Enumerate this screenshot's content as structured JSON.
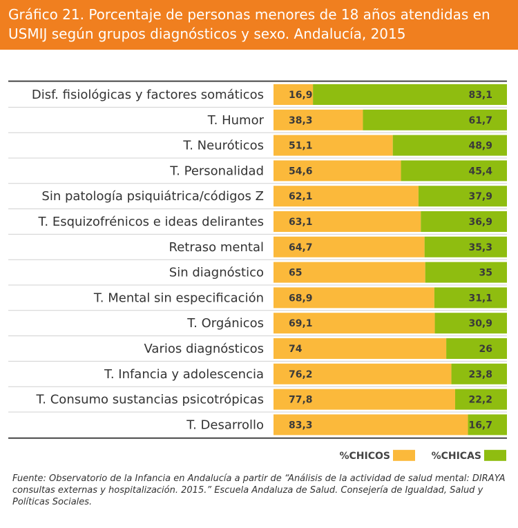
{
  "header": {
    "title": "Gráfico 21. Porcentaje de personas menores de 18 años atendidas en USMIJ según grupos diagnósticos y sexo. Andalucía, 2015"
  },
  "colors": {
    "chicos": "#fbb93b",
    "chicas": "#8fbd10",
    "header": "#f07f1f"
  },
  "chart_data": {
    "type": "bar",
    "stacked": true,
    "orientation": "horizontal",
    "xlim": [
      0,
      100
    ],
    "categories": [
      "Disf. fisiológicas y factores somáticos",
      "T. Humor",
      "T. Neuróticos",
      "T. Personalidad",
      "Sin patología psiquiátrica/códigos Z",
      "T. Esquizofrénicos e ideas delirantes",
      "Retraso mental",
      "Sin diagnóstico",
      "T. Mental sin especificación",
      "T. Orgánicos",
      "Varios diagnósticos",
      "T. Infancia y adolescencia",
      "T. Consumo sustancias psicotrópicas",
      "T. Desarrollo"
    ],
    "series": [
      {
        "name": "%CHICOS",
        "values": [
          16.9,
          38.3,
          51.1,
          54.6,
          62.1,
          63.1,
          64.7,
          65,
          68.9,
          69.1,
          74,
          76.2,
          77.8,
          83.3
        ],
        "labels": [
          "16,9",
          "38,3",
          "51,1",
          "54,6",
          "62,1",
          "63,1",
          "64,7",
          "65",
          "68,9",
          "69,1",
          "74",
          "76,2",
          "77,8",
          "83,3"
        ]
      },
      {
        "name": "%CHICAS",
        "values": [
          83.1,
          61.7,
          48.9,
          45.4,
          37.9,
          36.9,
          35.3,
          35,
          31.1,
          30.9,
          26,
          23.8,
          22.2,
          16.7
        ],
        "labels": [
          "83,1",
          "61,7",
          "48,9",
          "45,4",
          "37,9",
          "36,9",
          "35,3",
          "35",
          "31,1",
          "30,9",
          "26",
          "23,8",
          "22,2",
          "16,7"
        ]
      }
    ],
    "legend": [
      "%CHICOS",
      "%CHICAS"
    ]
  },
  "source": {
    "text": "Fuente: Observatorio de la Infancia en Andalucía a partir de “Análisis de la actividad de salud mental: DIRAYA consultas externas y hospitalización. 2015.” Escuela Andaluza de Salud. Consejería de Igualdad, Salud y Políticas Sociales."
  }
}
